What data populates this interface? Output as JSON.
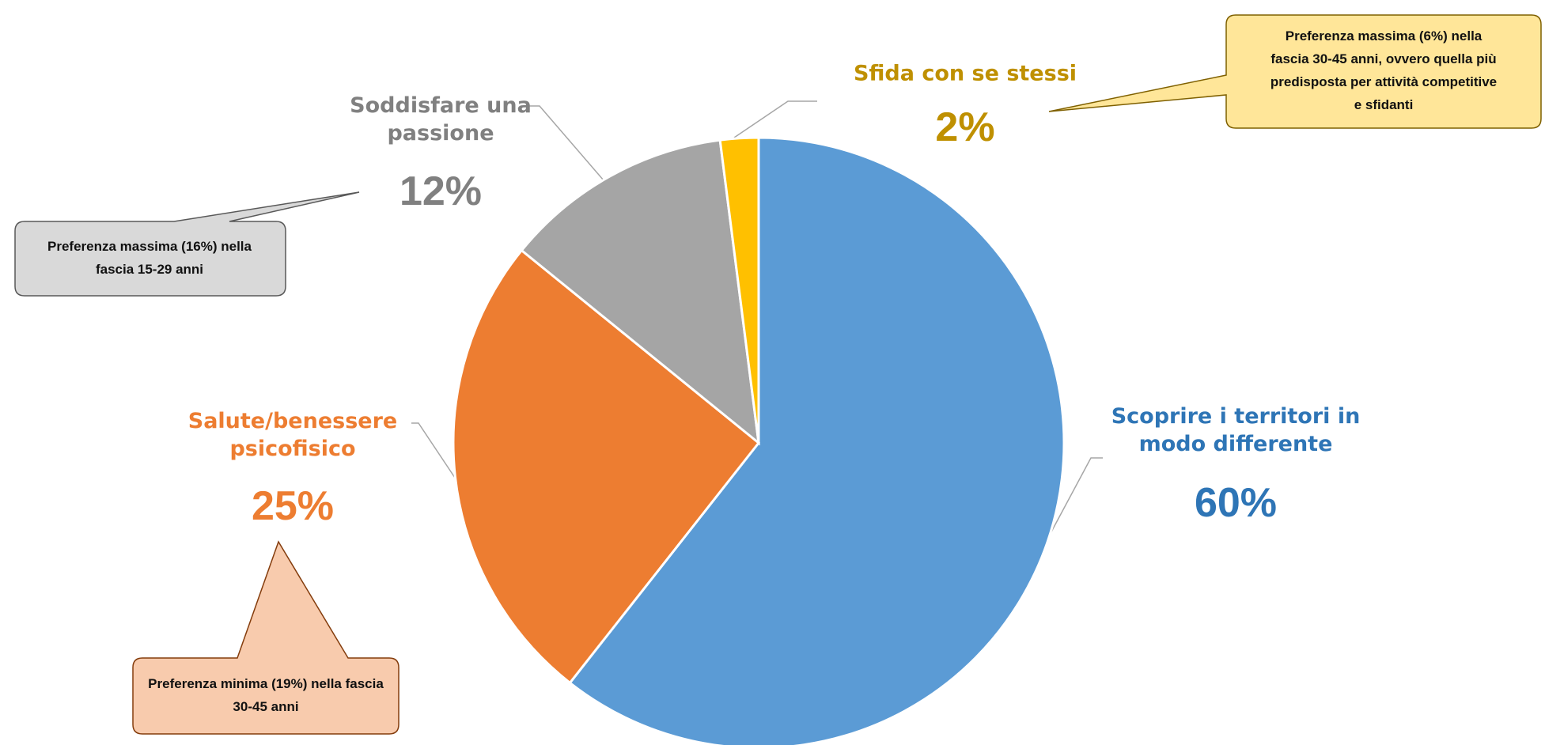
{
  "chart_data": {
    "type": "pie",
    "categories": [
      "Scoprire i territori in modo differente",
      "Salute/benessere psicofisico",
      "Soddisfare una passione",
      "Sfida con se stessi"
    ],
    "values": [
      60,
      25,
      12,
      2
    ],
    "value_labels": [
      "60%",
      "25%",
      "12%",
      "2%"
    ],
    "colors": [
      "#5b9bd5",
      "#ed7d31",
      "#a5a5a5",
      "#ffc000"
    ],
    "label_colors": [
      "#2e75b6",
      "#ed7d31",
      "#808080",
      "#bf9000"
    ],
    "annotations": [
      "Preferenza massima (6%) nella fascia 30-45 anni, ovvero quella più predisposta per attività competitive e sfidanti",
      "Preferenza massima (16%) nella fascia 15-29 anni",
      "Preferenza minima (19%) nella fascia 30-45 anni"
    ]
  }
}
